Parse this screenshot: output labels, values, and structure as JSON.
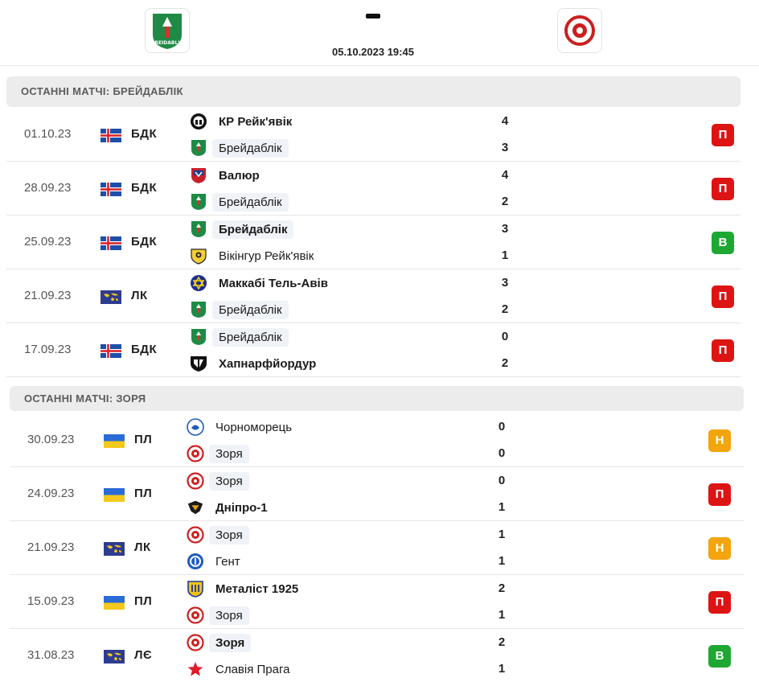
{
  "match": {
    "date": "05.10.2023 19:45"
  },
  "colors": {
    "loss": "#dd1414",
    "win": "#1ea833",
    "draw": "#f2a50c"
  },
  "sections": [
    {
      "title": "Останні матчі: Брейдаблік",
      "matches": [
        {
          "date": "01.10.23",
          "flag": "iceland",
          "comp": "БДК",
          "home": {
            "name": "КР Рейк'явік",
            "crest": "kr-crest-icon",
            "bold": true,
            "hl": false
          },
          "away": {
            "name": "Брейдаблік",
            "crest": "breidablik-crest-icon",
            "bold": false,
            "hl": true
          },
          "score_home": "4",
          "score_away": "3",
          "result": "П",
          "rtype": "L"
        },
        {
          "date": "28.09.23",
          "flag": "iceland",
          "comp": "БДК",
          "home": {
            "name": "Валюр",
            "crest": "valur-crest-icon",
            "bold": true,
            "hl": false
          },
          "away": {
            "name": "Брейдаблік",
            "crest": "breidablik-crest-icon",
            "bold": false,
            "hl": true
          },
          "score_home": "4",
          "score_away": "2",
          "result": "П",
          "rtype": "L"
        },
        {
          "date": "25.09.23",
          "flag": "iceland",
          "comp": "БДК",
          "home": {
            "name": "Брейдаблік",
            "crest": "breidablik-crest-icon",
            "bold": true,
            "hl": true
          },
          "away": {
            "name": "Вікінгур Рейк'явік",
            "crest": "vikingur-crest-icon",
            "bold": false,
            "hl": false
          },
          "score_home": "3",
          "score_away": "1",
          "result": "В",
          "rtype": "W"
        },
        {
          "date": "21.09.23",
          "flag": "world",
          "comp": "ЛК",
          "home": {
            "name": "Маккабі Тель-Авів",
            "crest": "maccabi-crest-icon",
            "bold": true,
            "hl": false
          },
          "away": {
            "name": "Брейдаблік",
            "crest": "breidablik-crest-icon",
            "bold": false,
            "hl": true
          },
          "score_home": "3",
          "score_away": "2",
          "result": "П",
          "rtype": "L"
        },
        {
          "date": "17.09.23",
          "flag": "iceland",
          "comp": "БДК",
          "home": {
            "name": "Брейдаблік",
            "crest": "breidablik-crest-icon",
            "bold": false,
            "hl": true
          },
          "away": {
            "name": "Хапнарфйордур",
            "crest": "fh-crest-icon",
            "bold": true,
            "hl": false
          },
          "score_home": "0",
          "score_away": "2",
          "result": "П",
          "rtype": "L"
        }
      ]
    },
    {
      "title": "Останні матчі: Зоря",
      "matches": [
        {
          "date": "30.09.23",
          "flag": "ukraine",
          "comp": "ПЛ",
          "home": {
            "name": "Чорноморець",
            "crest": "chornomorets-crest-icon",
            "bold": false,
            "hl": false
          },
          "away": {
            "name": "Зоря",
            "crest": "zorya-crest-icon",
            "bold": false,
            "hl": true
          },
          "score_home": "0",
          "score_away": "0",
          "result": "Н",
          "rtype": "D"
        },
        {
          "date": "24.09.23",
          "flag": "ukraine",
          "comp": "ПЛ",
          "home": {
            "name": "Зоря",
            "crest": "zorya-crest-icon",
            "bold": false,
            "hl": true
          },
          "away": {
            "name": "Дніпро-1",
            "crest": "dnipro-crest-icon",
            "bold": true,
            "hl": false
          },
          "score_home": "0",
          "score_away": "1",
          "result": "П",
          "rtype": "L"
        },
        {
          "date": "21.09.23",
          "flag": "world",
          "comp": "ЛК",
          "home": {
            "name": "Зоря",
            "crest": "zorya-crest-icon",
            "bold": false,
            "hl": true
          },
          "away": {
            "name": "Гент",
            "crest": "gent-crest-icon",
            "bold": false,
            "hl": false
          },
          "score_home": "1",
          "score_away": "1",
          "result": "Н",
          "rtype": "D"
        },
        {
          "date": "15.09.23",
          "flag": "ukraine",
          "comp": "ПЛ",
          "home": {
            "name": "Металіст 1925",
            "crest": "metalist-crest-icon",
            "bold": true,
            "hl": false
          },
          "away": {
            "name": "Зоря",
            "crest": "zorya-crest-icon",
            "bold": false,
            "hl": true
          },
          "score_home": "2",
          "score_away": "1",
          "result": "П",
          "rtype": "L"
        },
        {
          "date": "31.08.23",
          "flag": "world",
          "comp": "ЛЄ",
          "home": {
            "name": "Зоря",
            "crest": "zorya-crest-icon",
            "bold": true,
            "hl": true
          },
          "away": {
            "name": "Славія Прага",
            "crest": "slavia-star-icon",
            "bold": false,
            "hl": false
          },
          "score_home": "2",
          "score_away": "1",
          "result": "В",
          "rtype": "W"
        }
      ]
    }
  ]
}
